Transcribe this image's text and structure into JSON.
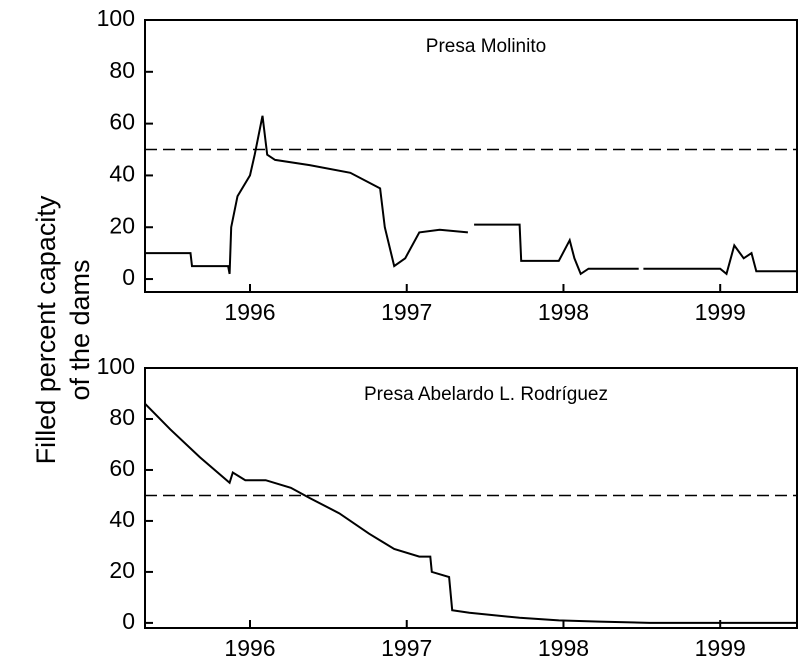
{
  "ylabel": [
    "Filled percent capacity",
    "of the dams"
  ],
  "chart_data": [
    {
      "type": "line",
      "title": "Presa Molinito",
      "x": [
        1995.33,
        1995.62,
        1995.63,
        1995.86,
        1995.87,
        1995.88,
        1995.92,
        1996.0,
        1996.03,
        1996.08,
        1996.11,
        1996.16,
        1996.38,
        1996.64,
        1996.83,
        1996.86,
        1996.92,
        1996.99,
        1997.08,
        1997.21,
        1997.39,
        1997.4,
        1997.43,
        1997.72,
        1997.73,
        1997.97,
        1998.04,
        1998.07,
        1998.11,
        1998.16,
        1998.29,
        1998.48,
        1998.49,
        1998.51,
        1999.0,
        1999.04,
        1999.09,
        1999.15,
        1999.2,
        1999.23,
        1999.49
      ],
      "values": [
        10,
        10,
        5,
        5,
        2,
        20,
        32,
        40,
        48,
        63,
        48,
        46,
        44,
        41,
        35,
        20,
        5,
        8,
        18,
        19,
        18,
        null,
        21,
        21,
        7,
        7,
        15,
        8,
        2,
        4,
        4,
        4,
        null,
        4,
        4,
        2,
        13,
        8,
        10,
        3,
        3
      ],
      "color": "#000000",
      "reference_line": 50,
      "xlim": [
        1995.33,
        1999.49
      ],
      "xticks": [
        1996,
        1997,
        1998,
        1999
      ],
      "ylim": [
        -5,
        100
      ],
      "yticks": [
        0,
        20,
        40,
        60,
        80,
        100
      ]
    },
    {
      "type": "line",
      "title": "Presa Abelardo L. Rodríguez",
      "x": [
        1995.33,
        1995.49,
        1995.68,
        1995.87,
        1995.89,
        1995.97,
        1996.1,
        1996.26,
        1996.38,
        1996.57,
        1996.76,
        1996.92,
        1997.08,
        1997.15,
        1997.16,
        1997.27,
        1997.29,
        1997.4,
        1997.72,
        1997.97,
        1998.23,
        1998.55,
        1999.49
      ],
      "values": [
        86,
        76,
        65,
        55,
        59,
        56,
        56,
        53,
        49,
        43,
        35,
        29,
        26,
        26,
        20,
        18,
        5,
        4,
        2,
        1,
        0.5,
        0,
        0
      ],
      "color": "#000000",
      "reference_line": 50,
      "xlim": [
        1995.33,
        1999.49
      ],
      "xticks": [
        1996,
        1997,
        1998,
        1999
      ],
      "ylim": [
        -2,
        100
      ],
      "yticks": [
        0,
        20,
        40,
        60,
        80,
        100
      ]
    }
  ]
}
